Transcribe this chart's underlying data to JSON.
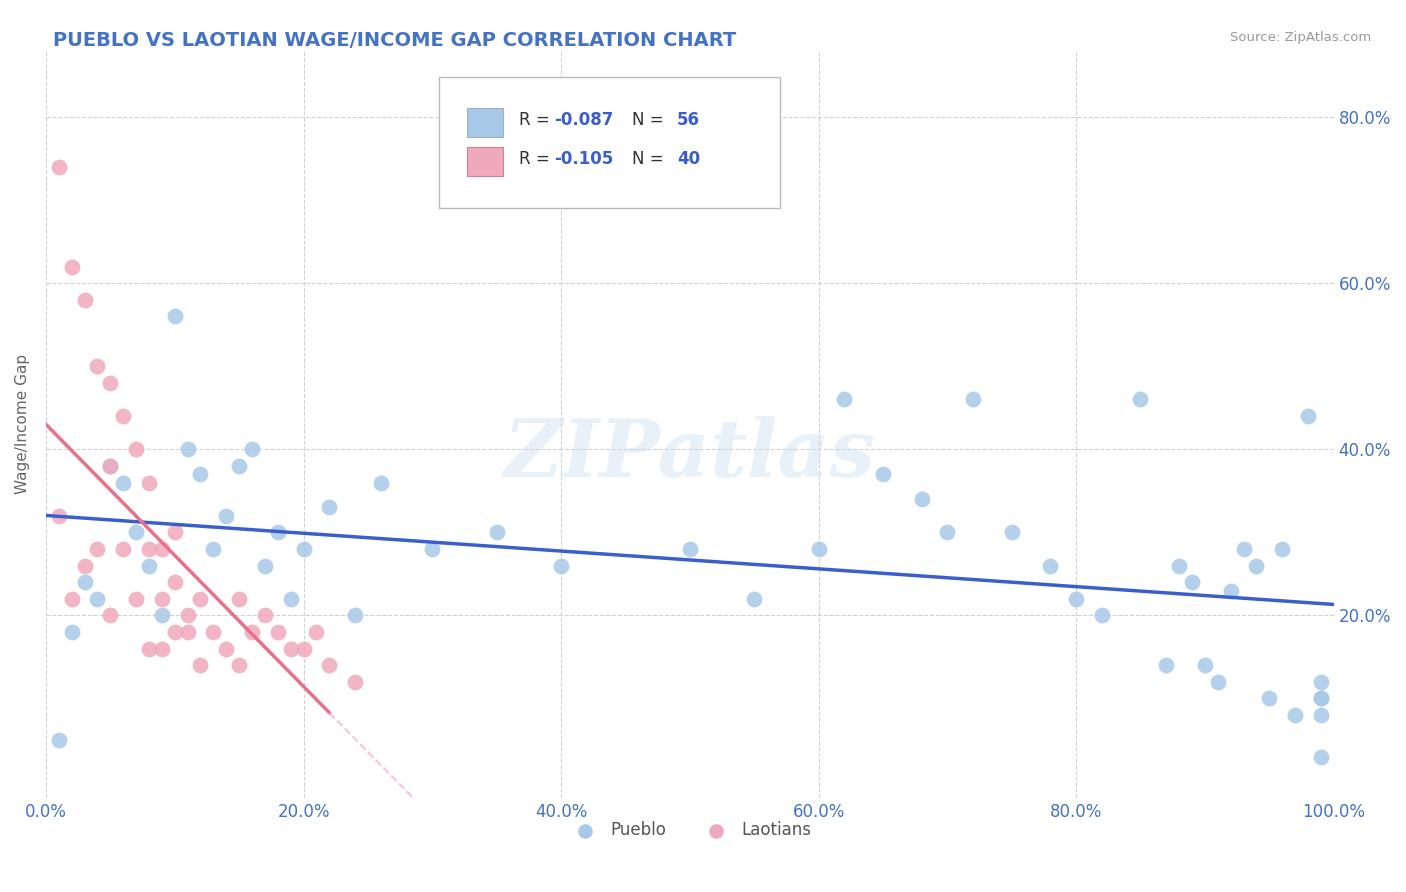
{
  "title": "PUEBLO VS LAOTIAN WAGE/INCOME GAP CORRELATION CHART",
  "source": "Source: ZipAtlas.com",
  "ylabel": "Wage/Income Gap",
  "xlim": [
    0,
    100
  ],
  "ylim": [
    -2,
    88
  ],
  "yticks": [
    20,
    40,
    60,
    80
  ],
  "xticks": [
    0,
    20,
    40,
    60,
    80,
    100
  ],
  "pueblo_color": "#a8c8e8",
  "laotian_color": "#f0a8bc",
  "pueblo_line_color": "#3a5fcd",
  "laotian_line_solid_color": "#e8708a",
  "laotian_line_dashed_color": "#f0b0c0",
  "r_pueblo": -0.087,
  "n_pueblo": 56,
  "r_laotian": -0.105,
  "n_laotian": 40,
  "background_color": "#ffffff",
  "title_color": "#4472c4",
  "axis_label_color": "#666666",
  "tick_label_color": "#4472c4",
  "watermark": "ZIPatlas",
  "pueblo_x": [
    1,
    2,
    3,
    4,
    5,
    6,
    7,
    8,
    9,
    10,
    11,
    12,
    13,
    14,
    15,
    16,
    17,
    18,
    19,
    20,
    22,
    24,
    26,
    30,
    35,
    40,
    50,
    55,
    60,
    62,
    65,
    68,
    70,
    72,
    75,
    78,
    80,
    82,
    85,
    87,
    88,
    89,
    90,
    91,
    92,
    93,
    94,
    95,
    96,
    97,
    98,
    99,
    99,
    99,
    99,
    99
  ],
  "pueblo_y": [
    5,
    18,
    24,
    22,
    38,
    36,
    30,
    26,
    20,
    56,
    40,
    37,
    28,
    32,
    38,
    40,
    26,
    30,
    22,
    28,
    33,
    20,
    36,
    28,
    30,
    26,
    28,
    22,
    28,
    46,
    37,
    34,
    30,
    46,
    30,
    26,
    22,
    20,
    46,
    14,
    26,
    24,
    14,
    12,
    23,
    28,
    26,
    10,
    28,
    8,
    44,
    8,
    10,
    12,
    3,
    10
  ],
  "laotian_x": [
    1,
    1,
    2,
    2,
    3,
    3,
    4,
    4,
    5,
    5,
    5,
    6,
    6,
    7,
    7,
    8,
    8,
    8,
    9,
    9,
    9,
    10,
    10,
    10,
    11,
    11,
    12,
    12,
    13,
    14,
    15,
    15,
    16,
    17,
    18,
    19,
    20,
    21,
    22,
    24
  ],
  "laotian_y": [
    74,
    32,
    62,
    22,
    58,
    26,
    50,
    28,
    48,
    38,
    20,
    44,
    28,
    40,
    22,
    36,
    28,
    16,
    28,
    22,
    16,
    30,
    24,
    18,
    20,
    18,
    22,
    14,
    18,
    16,
    22,
    14,
    18,
    20,
    18,
    16,
    16,
    18,
    14,
    12
  ]
}
